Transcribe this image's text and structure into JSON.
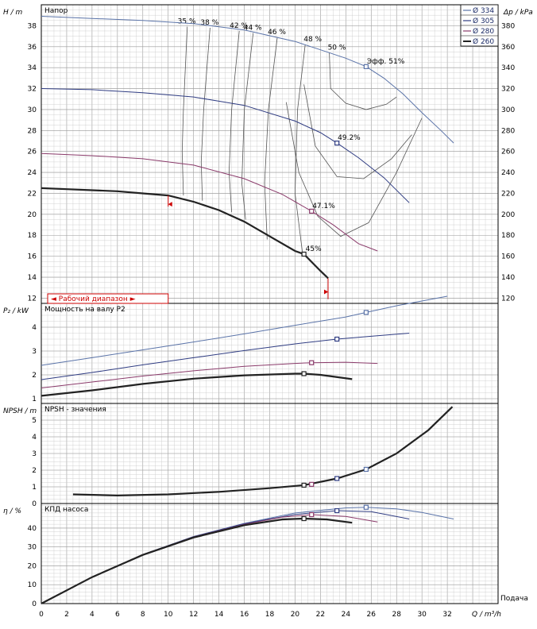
{
  "chart_data": {
    "type": "line",
    "x_axis": {
      "label": "Q / m³/h",
      "side_label": "Подача",
      "range": [
        0,
        36
      ],
      "ticks": [
        0,
        2,
        4,
        6,
        8,
        10,
        12,
        14,
        16,
        18,
        20,
        22,
        24,
        26,
        28,
        30,
        32
      ]
    },
    "colors": {
      "d334": "#5a73a8",
      "d305": "#2f3c82",
      "d280": "#8a3a6a",
      "d260": "#222222",
      "iso": "#555555",
      "range": "#cc0000",
      "grid": "#c8c8c8",
      "grid_major": "#9a9a9a"
    },
    "legend": [
      {
        "label": "Ø 334",
        "color": "#5a73a8"
      },
      {
        "label": "Ø 305",
        "color": "#2f3c82"
      },
      {
        "label": "Ø 280",
        "color": "#8a3a6a"
      },
      {
        "label": "Ø 260",
        "color": "#222222"
      }
    ],
    "panels": {
      "head": {
        "title": "Напор",
        "ylabel": "H / m",
        "ylabel_right": "Δp / kPa",
        "ylim": [
          11.5,
          40
        ],
        "yticks": [
          12,
          14,
          16,
          18,
          20,
          22,
          24,
          26,
          28,
          30,
          32,
          34,
          36,
          38
        ],
        "yticks_right": [
          120,
          140,
          160,
          180,
          200,
          220,
          240,
          260,
          280,
          300,
          320,
          340,
          360,
          380
        ],
        "series": [
          {
            "id": "d334",
            "x": [
              0,
              4,
              8,
              12,
              16,
              20,
              22,
              24,
              25.6,
              27,
              28.5,
              30,
              31.5,
              32.5
            ],
            "y": [
              38.9,
              38.7,
              38.5,
              38.2,
              37.6,
              36.5,
              35.7,
              34.9,
              34.1,
              33.0,
              31.5,
              29.7,
              28.0,
              26.8
            ]
          },
          {
            "id": "d305",
            "x": [
              0,
              4,
              8,
              12,
              16,
              20,
              22,
              23.3,
              25,
              27,
              29
            ],
            "y": [
              32.0,
              31.9,
              31.6,
              31.2,
              30.4,
              28.9,
              27.8,
              26.8,
              25.4,
              23.5,
              21.1
            ]
          },
          {
            "id": "d280",
            "x": [
              0,
              4,
              8,
              12,
              16,
              19,
              21.3,
              23,
              25,
              26.5
            ],
            "y": [
              25.8,
              25.6,
              25.3,
              24.7,
              23.4,
              21.9,
              20.3,
              19.0,
              17.2,
              16.5
            ]
          },
          {
            "id": "d260",
            "x": [
              0,
              2,
              4,
              6,
              8,
              10,
              12,
              14,
              16,
              18,
              20,
              20.7,
              22,
              22.6
            ],
            "y": [
              22.5,
              22.4,
              22.3,
              22.2,
              22.0,
              21.8,
              21.2,
              20.4,
              19.3,
              17.9,
              16.5,
              16.2,
              14.6,
              13.9
            ]
          }
        ],
        "op_points": [
          {
            "series": "d334",
            "x": 25.6,
            "y": 34.1,
            "label": "Эфф.  51%"
          },
          {
            "series": "d305",
            "x": 23.3,
            "y": 26.8,
            "label": "49.2%"
          },
          {
            "series": "d280",
            "x": 21.3,
            "y": 20.3,
            "label": "47.1%"
          },
          {
            "series": "d260",
            "x": 20.7,
            "y": 16.2,
            "label": "45%"
          }
        ],
        "iso_efficiency": [
          {
            "label": "35 %",
            "x": [
              11.5,
              11.2,
              11.1,
              11.2
            ],
            "y": [
              37.9,
              30.0,
              26.0,
              21.8
            ]
          },
          {
            "label": "38 %",
            "x": [
              13.3,
              12.8,
              12.6,
              12.7
            ],
            "y": [
              37.8,
              30.0,
              25.0,
              21.3
            ]
          },
          {
            "label": "42 %",
            "x": [
              15.6,
              15.0,
              14.8,
              15.0
            ],
            "y": [
              37.5,
              30.0,
              24.0,
              20.2
            ]
          },
          {
            "label": "44 %",
            "x": [
              16.7,
              16.0,
              15.8,
              16.1
            ],
            "y": [
              37.3,
              30.0,
              23.0,
              19.5
            ]
          },
          {
            "label": "46 %",
            "x": [
              18.6,
              17.9,
              17.6,
              17.8
            ],
            "y": [
              36.9,
              30.0,
              23.0,
              17.6
            ]
          },
          {
            "label": "48 %",
            "x": [
              20.8,
              20.2,
              20.0,
              20.6
            ],
            "y": [
              36.2,
              30.0,
              22.0,
              16.2
            ]
          }
        ],
        "iso_loops": [
          {
            "label": "50 %",
            "x": [
              22.7,
              22.8,
              24.0,
              25.6,
              27.2,
              28.0
            ],
            "y": [
              35.4,
              32.0,
              30.6,
              30.0,
              30.5,
              31.2
            ]
          },
          {
            "label": "",
            "x": [
              20.7,
              21.6,
              23.3,
              25.4,
              27.6,
              29.2
            ],
            "y": [
              32.4,
              26.5,
              23.6,
              23.4,
              25.3,
              27.6
            ]
          },
          {
            "label": "",
            "x": [
              19.3,
              20.3,
              21.8,
              23.6,
              25.8,
              28.0,
              30.0
            ],
            "y": [
              30.7,
              24.0,
              19.8,
              17.9,
              19.2,
              24.0,
              29.2
            ]
          }
        ],
        "operating_range": {
          "label": "◄ Рабочий диапазон ►",
          "q_min": 10,
          "q_max": 22.6
        },
        "extra_series_tip": {
          "x": 30.5,
          "y": 29.2
        }
      },
      "power": {
        "title": "Мощность на валу P2",
        "ylabel": "P₂ / kW",
        "ylim": [
          0.8,
          5.0
        ],
        "yticks": [
          1,
          2,
          3,
          4
        ],
        "series": [
          {
            "id": "d334",
            "x": [
              0,
              4,
              8,
              12,
              16,
              20,
              24,
              25.6,
              28,
              32
            ],
            "y": [
              2.4,
              2.72,
              3.05,
              3.38,
              3.72,
              4.08,
              4.43,
              4.62,
              4.9,
              5.3
            ]
          },
          {
            "id": "d305",
            "x": [
              0,
              4,
              8,
              12,
              16,
              20,
              23.3,
              26,
              29
            ],
            "y": [
              1.8,
              2.1,
              2.42,
              2.72,
              3.02,
              3.3,
              3.5,
              3.62,
              3.75
            ]
          },
          {
            "id": "d280",
            "x": [
              0,
              4,
              8,
              12,
              16,
              20,
              21.3,
              24,
              26.5
            ],
            "y": [
              1.45,
              1.7,
              1.95,
              2.17,
              2.36,
              2.48,
              2.51,
              2.53,
              2.48
            ]
          },
          {
            "id": "d260",
            "x": [
              0,
              4,
              8,
              12,
              16,
              20,
              20.7,
              22,
              24.5
            ],
            "y": [
              1.12,
              1.35,
              1.62,
              1.84,
              1.98,
              2.05,
              2.05,
              2.0,
              1.82
            ]
          }
        ],
        "op_points": [
          {
            "series": "d334",
            "x": 25.6,
            "y": 4.62
          },
          {
            "series": "d305",
            "x": 23.3,
            "y": 3.5
          },
          {
            "series": "d280",
            "x": 21.3,
            "y": 2.51
          },
          {
            "series": "d260",
            "x": 20.7,
            "y": 2.05
          }
        ]
      },
      "npsh": {
        "title": "NPSH - значения",
        "ylabel": "NPSH / m",
        "ylim": [
          0,
          6
        ],
        "yticks": [
          0,
          1,
          2,
          3,
          4,
          5
        ],
        "series": [
          {
            "id": "d260",
            "x": [
              2.5,
              6,
              10,
              14,
              18,
              20.7,
              23.3,
              25.6,
              28,
              30.5,
              32.4
            ],
            "y": [
              0.55,
              0.48,
              0.55,
              0.7,
              0.92,
              1.1,
              1.5,
              2.05,
              3.0,
              4.4,
              5.8
            ]
          }
        ],
        "op_points": [
          {
            "series": "d260",
            "x": 20.7,
            "y": 1.1
          },
          {
            "series": "d280",
            "x": 21.3,
            "y": 1.15
          },
          {
            "series": "d305",
            "x": 23.3,
            "y": 1.5
          },
          {
            "series": "d334",
            "x": 25.6,
            "y": 2.05
          }
        ]
      },
      "efficiency": {
        "title": "КПД насоса",
        "ylabel": "η / %",
        "ylim": [
          0,
          53
        ],
        "yticks": [
          0,
          10,
          20,
          30,
          40
        ],
        "series": [
          {
            "id": "d334",
            "x": [
              0,
              4,
              8,
              12,
              16,
              20,
              24,
              25.6,
              28,
              30,
              32.5
            ],
            "y": [
              0,
              14,
              26,
              35.5,
              42.5,
              48,
              50.7,
              51,
              50.2,
              48.3,
              44.8
            ]
          },
          {
            "id": "d305",
            "x": [
              0,
              4,
              8,
              12,
              16,
              20,
              23.3,
              26,
              29
            ],
            "y": [
              0,
              14,
              26,
              35.5,
              42.3,
              47.2,
              49.2,
              48.7,
              44.8
            ]
          },
          {
            "id": "d280",
            "x": [
              0,
              4,
              8,
              12,
              16,
              19,
              21.3,
              24,
              26.5
            ],
            "y": [
              0,
              14,
              26,
              35.3,
              42,
              45.8,
              47.1,
              46.2,
              43.2
            ]
          },
          {
            "id": "d260",
            "x": [
              0,
              4,
              8,
              12,
              16,
              19,
              20.7,
              22.5,
              24.5
            ],
            "y": [
              0,
              14,
              25.8,
              35,
              41.5,
              44.6,
              45,
              44.6,
              42.8
            ]
          }
        ],
        "op_points": [
          {
            "series": "d334",
            "x": 25.6,
            "y": 51
          },
          {
            "series": "d305",
            "x": 23.3,
            "y": 49.2
          },
          {
            "series": "d280",
            "x": 21.3,
            "y": 47.1
          },
          {
            "series": "d260",
            "x": 20.7,
            "y": 45
          }
        ]
      }
    }
  }
}
